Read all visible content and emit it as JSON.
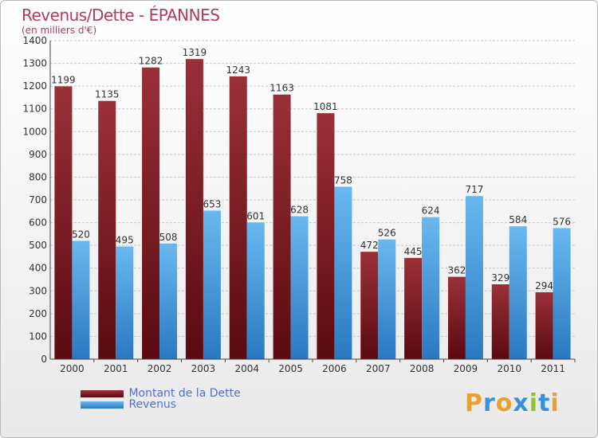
{
  "header": {
    "title": "Revenus/Dette - ÉPANNES",
    "subtitle": "(en milliers d'€)"
  },
  "legend": {
    "debt_label": "Montant de la Dette",
    "revenue_label": "Revenus"
  },
  "logo": {
    "letters": [
      "P",
      "r",
      "o",
      "x",
      "i",
      "t",
      "i"
    ],
    "colors": [
      "#e8a030",
      "#3a8fd8",
      "#e8a030",
      "#3a8fd8",
      "#8fc23a",
      "#3a8fd8",
      "#e8a030"
    ]
  },
  "colors": {
    "debt_top": "#9a3038",
    "debt_bottom": "#5a0a10",
    "revenue_top": "#6ab8ef",
    "revenue_bottom": "#2a78c0",
    "title": "#b03a5a",
    "legend_text": "#4e6fe0"
  },
  "chart_data": {
    "type": "bar",
    "title": "Revenus/Dette - ÉPANNES",
    "subtitle": "(en milliers d'€)",
    "categories": [
      "2000",
      "2001",
      "2002",
      "2003",
      "2004",
      "2005",
      "2006",
      "2007",
      "2008",
      "2009",
      "2010",
      "2011"
    ],
    "series": [
      {
        "name": "Montant de la Dette",
        "values": [
          1199,
          1135,
          1282,
          1319,
          1243,
          1163,
          1081,
          472,
          445,
          362,
          329,
          294
        ]
      },
      {
        "name": "Revenus",
        "values": [
          520,
          495,
          508,
          653,
          601,
          628,
          758,
          526,
          624,
          717,
          584,
          576
        ]
      }
    ],
    "ylim": [
      0,
      1400
    ],
    "yticks": [
      0,
      100,
      200,
      300,
      400,
      500,
      600,
      700,
      800,
      900,
      1000,
      1100,
      1200,
      1300,
      1400
    ],
    "grid": true,
    "legend_position": "bottom-left"
  }
}
